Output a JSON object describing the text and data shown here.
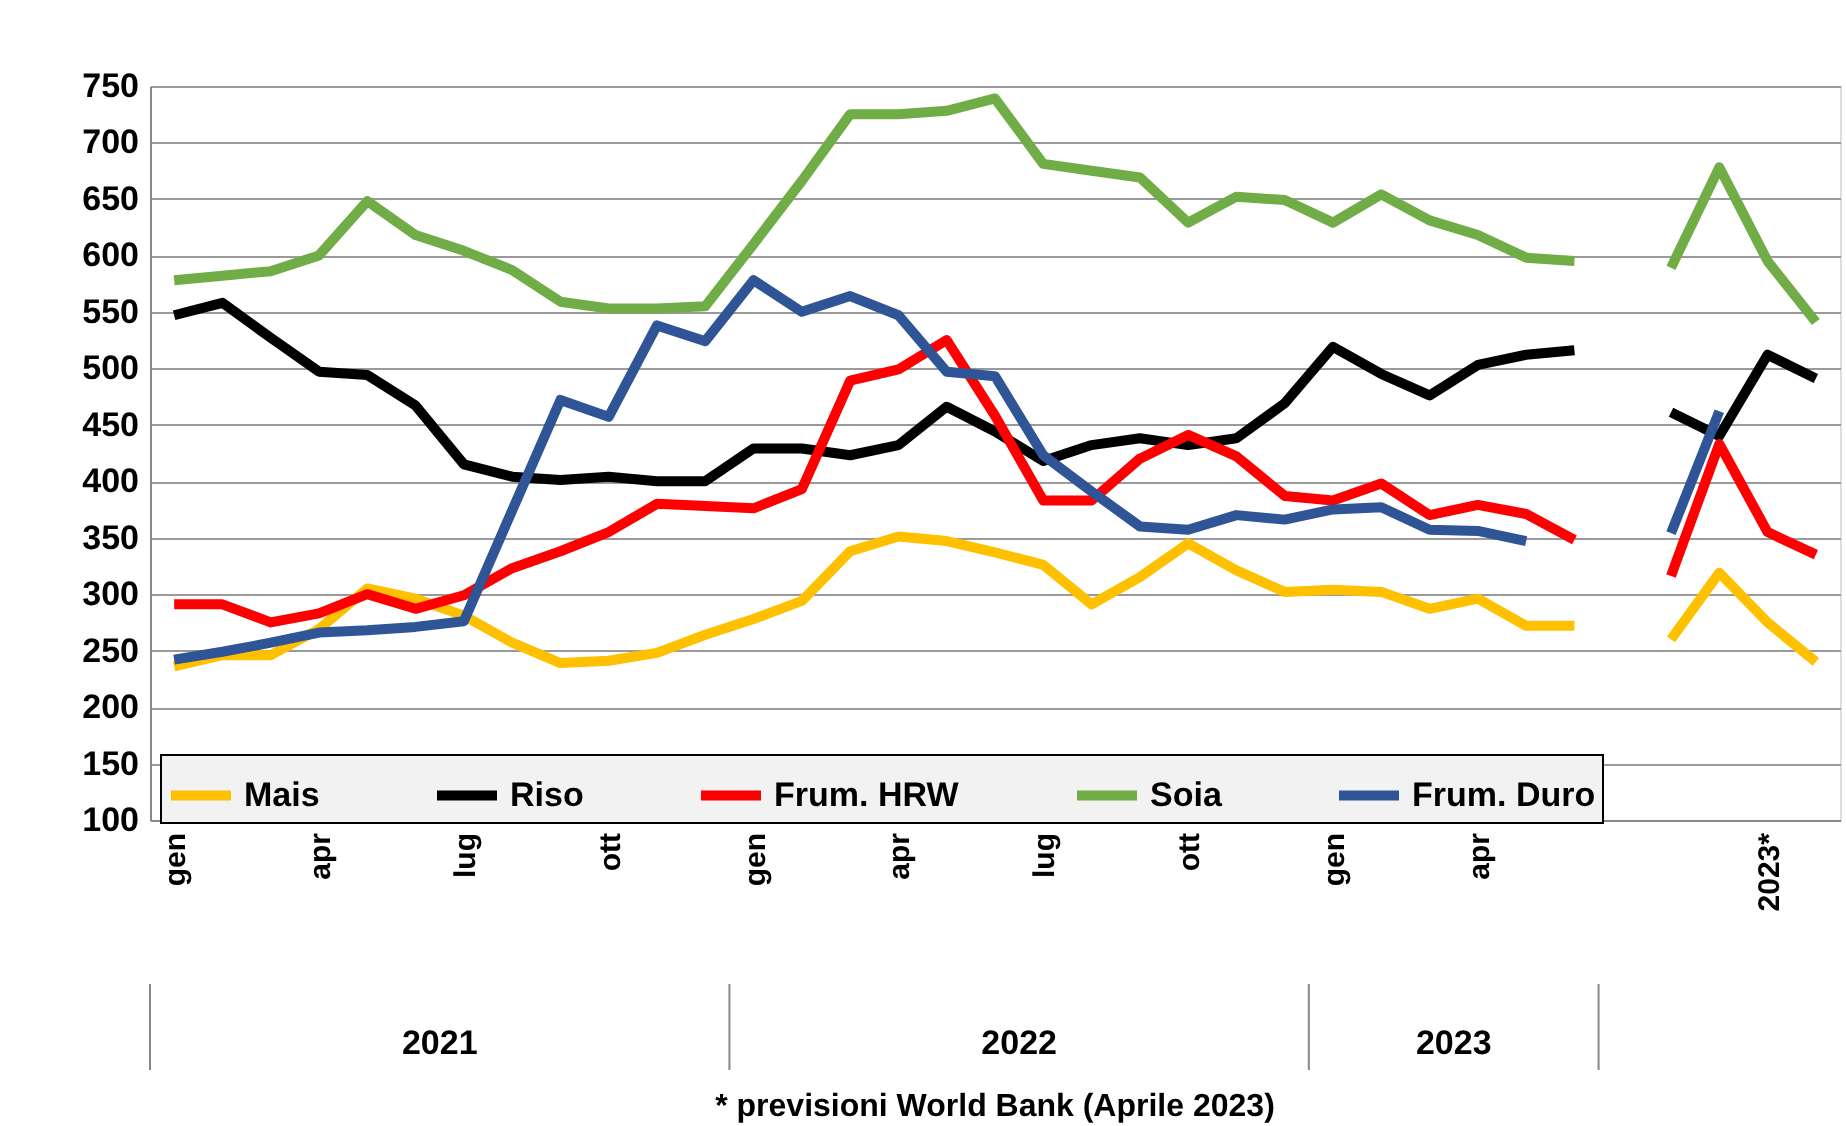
{
  "chart_data": {
    "type": "line",
    "categories": [
      "gen",
      null,
      null,
      "apr",
      null,
      null,
      "lug",
      null,
      null,
      "ott",
      null,
      null,
      "gen",
      null,
      null,
      "apr",
      null,
      null,
      "lug",
      null,
      null,
      "ott",
      null,
      null,
      "gen",
      null,
      null,
      "apr",
      null,
      null,
      null,
      null,
      null,
      "2023*",
      null
    ],
    "series": [
      {
        "name": "Mais",
        "color": "#ffc000",
        "values": [
          236,
          246,
          246,
          269,
          305,
          296,
          281,
          257,
          239,
          241,
          248,
          264,
          278,
          294,
          338,
          351,
          347,
          337,
          326,
          291,
          315,
          345,
          321,
          302,
          304,
          302,
          287,
          296,
          272,
          272,
          null,
          260,
          319,
          275,
          240
        ]
      },
      {
        "name": "Riso",
        "color": "#000000",
        "values": [
          547,
          558,
          527,
          497,
          494,
          467,
          415,
          404,
          401,
          404,
          400,
          400,
          429,
          429,
          423,
          432,
          466,
          444,
          418,
          432,
          438,
          432,
          438,
          469,
          519,
          495,
          476,
          503,
          512,
          516,
          null,
          461,
          440,
          512,
          491
        ]
      },
      {
        "name": "Frum. HRW",
        "color": "#ff0000",
        "values": [
          291,
          291,
          275,
          283,
          300,
          287,
          299,
          323,
          338,
          355,
          380,
          378,
          376,
          393,
          489,
          499,
          525,
          458,
          383,
          383,
          420,
          441,
          422,
          387,
          383,
          398,
          370,
          379,
          371,
          348,
          null,
          316,
          433,
          355,
          335
        ]
      },
      {
        "name": "Soia",
        "color": "#70ad47",
        "values": [
          578,
          582,
          586,
          600,
          648,
          618,
          604,
          587,
          559,
          553,
          553,
          555,
          610,
          666,
          725,
          725,
          728,
          739,
          681,
          675,
          669,
          629,
          652,
          649,
          629,
          654,
          631,
          618,
          598,
          595,
          null,
          589,
          678,
          595,
          541
        ]
      },
      {
        "name": "Frum. Duro",
        "color": "#2f5597",
        "values": [
          242,
          249,
          257,
          266,
          268,
          271,
          276,
          374,
          472,
          457,
          538,
          524,
          578,
          550,
          564,
          547,
          497,
          493,
          423,
          391,
          360,
          357,
          370,
          366,
          375,
          377,
          357,
          356,
          347,
          null,
          null,
          354,
          462,
          null,
          null
        ]
      }
    ],
    "ylim": [
      100,
      750
    ],
    "yticks": [
      100,
      150,
      200,
      250,
      300,
      350,
      400,
      450,
      500,
      550,
      600,
      650,
      700,
      750
    ],
    "grid": "y",
    "legend": "bottom",
    "annotations": [
      "2021",
      "2022",
      "2023",
      "* previsioni World Bank (Aprile 2023)"
    ]
  }
}
